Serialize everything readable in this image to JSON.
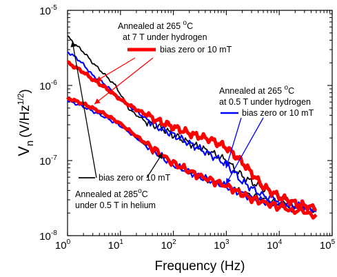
{
  "chart_data": {
    "type": "line",
    "xscale": "log",
    "yscale": "log",
    "xlabel": "Frequency (Hz)",
    "ylabel_main": "V",
    "ylabel_sub": "n",
    "ylabel_units": "(V/Hz",
    "ylabel_exp": "1/2",
    "ylabel_close": ")",
    "xlim": [
      1,
      100000
    ],
    "ylim": [
      1e-08,
      1e-05
    ],
    "x_ticks": [
      {
        "value": 1,
        "base": "10",
        "exp": "0"
      },
      {
        "value": 10,
        "base": "10",
        "exp": "1"
      },
      {
        "value": 100,
        "base": "10",
        "exp": "2"
      },
      {
        "value": 1000,
        "base": "10",
        "exp": "3"
      },
      {
        "value": 10000,
        "base": "10",
        "exp": "4"
      },
      {
        "value": 100000,
        "base": "10",
        "exp": "5"
      }
    ],
    "y_ticks": [
      {
        "value": 1e-08,
        "base": "10",
        "exp": "-8"
      },
      {
        "value": 1e-07,
        "base": "10",
        "exp": "-7"
      },
      {
        "value": 1e-06,
        "base": "10",
        "exp": "-6"
      },
      {
        "value": 1e-05,
        "base": "10",
        "exp": "-5"
      }
    ],
    "series": [
      {
        "color": "#000000",
        "width": 1.8,
        "x": [
          1,
          1.3,
          2,
          3,
          5,
          8,
          15,
          30,
          60,
          100,
          200,
          500,
          1000,
          2000,
          5000,
          10000,
          20000,
          50000
        ],
        "y": [
          4.5e-06,
          3.7e-06,
          2.8e-06,
          2e-06,
          1.4e-06,
          1e-06,
          4.7e-07,
          3.3e-07,
          2.7e-07,
          2.2e-07,
          1.7e-07,
          1.3e-07,
          1e-07,
          6.2e-08,
          4.2e-08,
          3.4e-08,
          2.7e-08,
          2.3e-08
        ]
      },
      {
        "color": "#000000",
        "width": 1.8,
        "x": [
          1,
          2,
          5,
          10,
          30,
          100,
          300,
          1000,
          3000,
          10000,
          50000
        ],
        "y": [
          6.5e-07,
          5.5e-07,
          4e-07,
          3e-07,
          1.6e-07,
          9e-08,
          6e-08,
          4.6e-08,
          3.4e-08,
          2.7e-08,
          2.2e-08
        ]
      },
      {
        "color": "#0000ff",
        "width": 2.2,
        "x": [
          1,
          1.5,
          2,
          3,
          5,
          10,
          20,
          50,
          100,
          200,
          500,
          1000,
          2000,
          5000,
          10000,
          20000,
          50000
        ],
        "y": [
          2.8e-06,
          2.3e-06,
          1.9e-06,
          1.35e-06,
          1.05e-06,
          6.5e-07,
          4.5e-07,
          2.8e-07,
          2.2e-07,
          1.7e-07,
          1.2e-07,
          9e-08,
          5.2e-08,
          3.4e-08,
          2.9e-08,
          2.5e-08,
          2.3e-08
        ]
      },
      {
        "color": "#0000ff",
        "width": 2.2,
        "x": [
          1,
          2,
          5,
          10,
          30,
          100,
          300,
          1000,
          3000,
          10000,
          50000
        ],
        "y": [
          6.3e-07,
          5.2e-07,
          3.8e-07,
          2.9e-07,
          1.6e-07,
          8.7e-08,
          6.2e-08,
          4.5e-08,
          3.2e-08,
          2.5e-08,
          2.1e-08
        ]
      },
      {
        "color": "#ff0000",
        "width": 5,
        "x": [
          1,
          1.5,
          2,
          3,
          5,
          10,
          20,
          50,
          100,
          200,
          500,
          1000,
          2000,
          5000,
          10000,
          20000,
          50000
        ],
        "y": [
          2e-06,
          1.7e-06,
          1.5e-06,
          1.2e-06,
          9.5e-07,
          6.5e-07,
          4.8e-07,
          3.4e-07,
          2.8e-07,
          2.3e-07,
          1.9e-07,
          1.5e-07,
          9.5e-08,
          4.5e-08,
          3.3e-08,
          2.7e-08,
          2.3e-08
        ]
      },
      {
        "color": "#ff0000",
        "width": 5,
        "x": [
          1,
          2,
          5,
          10,
          30,
          100,
          300,
          1000,
          3000,
          10000,
          50000
        ],
        "y": [
          6.8e-07,
          5.7e-07,
          4.2e-07,
          3.1e-07,
          1.7e-07,
          9.2e-08,
          6.3e-08,
          4.6e-08,
          3.1e-08,
          2.4e-08,
          1.9e-08
        ]
      }
    ],
    "legend": [
      {
        "color": "#ff0000",
        "label": "bias zero or 10 mT"
      },
      {
        "color": "#0000ff",
        "label": "bias zero or 10 mT"
      },
      {
        "color": "#000000",
        "label": "bias zero or 10 mT"
      }
    ],
    "annotations": {
      "red_line1": "Annealed  at 265 ",
      "red_deg": "o",
      "red_line1_end": "C",
      "red_line2": "at 7 T under hydrogen",
      "red_legend": "bias zero or 10 mT",
      "blue_line1": "Annealed at 265 ",
      "blue_deg": "o",
      "blue_line1_end": "C",
      "blue_line2": "at 0.5 T under hydrogen",
      "blue_legend": "bias zero or 10 mT",
      "black_legend": "bias zero or 10 mT",
      "black_line1": "Annealed at 285",
      "black_deg": "o",
      "black_line1_end": "C",
      "black_line2": "under 0.5 T in helium"
    }
  }
}
